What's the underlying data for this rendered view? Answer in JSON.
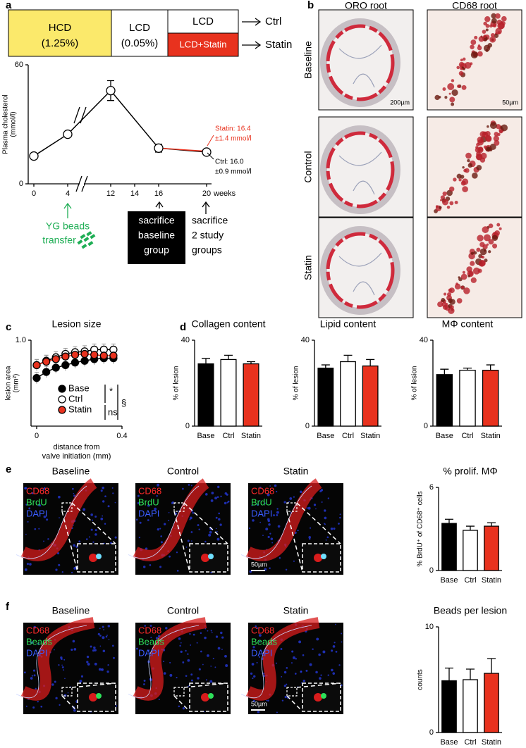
{
  "panel_labels": [
    "a",
    "b",
    "c",
    "d",
    "e",
    "f"
  ],
  "timeline": {
    "boxes": [
      {
        "lines": [
          "HCD",
          "(1.25%)"
        ]
      },
      {
        "lines": [
          "LCD",
          "(0.05%)"
        ]
      },
      {
        "lines": [
          "LCD"
        ]
      },
      {
        "lines": [
          "LCD+Statin"
        ]
      }
    ],
    "outcomes": [
      "Ctrl",
      "Statin"
    ],
    "events": [
      {
        "lines": [
          "YG beads",
          "transfer"
        ]
      },
      {
        "lines": [
          "sacrifice",
          "baseline",
          "group"
        ]
      },
      {
        "lines": [
          "sacrifice",
          "2 study",
          "groups"
        ]
      }
    ]
  },
  "histology": {
    "columns": [
      "ORO root",
      "CD68 root"
    ],
    "rows": [
      "Baseline",
      "Control",
      "Statin"
    ],
    "scales": [
      "200µm",
      "50µm"
    ]
  },
  "fluorescence": [
    {
      "titles": [
        "Baseline",
        "Control",
        "Statin"
      ],
      "channels": [
        "CD68",
        "BrdU",
        "DAPI"
      ],
      "scale": "50µm"
    },
    {
      "titles": [
        "Baseline",
        "Control",
        "Statin"
      ],
      "channels": [
        "CD68",
        "Beads",
        "DAPI"
      ],
      "scale": "50µm"
    }
  ],
  "chart_data": [
    {
      "type": "line",
      "ylabel": [
        "Plasma cholesterol",
        "(mmol/l)"
      ],
      "x_unit": "weeks",
      "xlim": [
        0,
        20
      ],
      "xticks": [
        0,
        4,
        12,
        14,
        16,
        20
      ],
      "ylim": [
        0,
        60
      ],
      "yticks": [
        0,
        60
      ],
      "series": [
        {
          "color": "#000000",
          "marker_fill": "#ffffff",
          "x": [
            0,
            4,
            12,
            16,
            20
          ],
          "values": [
            14,
            25,
            47,
            18,
            16.0
          ],
          "errors": [
            null,
            null,
            5,
            2,
            null
          ]
        },
        {
          "color": "#e8321e",
          "x": [
            16,
            20
          ],
          "values": [
            18,
            16.4
          ]
        }
      ],
      "annotations": [
        {
          "color": "#e8321e",
          "lines": [
            "Statin: 16.4",
            "±1.4 mmol/l"
          ]
        },
        {
          "color": "#000000",
          "lines": [
            "Ctrl: 16.0",
            "±0.9 mmol/l"
          ]
        }
      ]
    },
    {
      "type": "line",
      "title": "Lesion size",
      "ylabel": [
        "lesion area",
        "(mm²)"
      ],
      "xlabel": [
        "distance from",
        "valve initiation (mm)"
      ],
      "x": [
        0,
        0.045,
        0.09,
        0.135,
        0.18,
        0.225,
        0.27,
        0.315,
        0.36
      ],
      "xlim": [
        0,
        0.4
      ],
      "xticks": [
        0,
        0.4
      ],
      "ylim": [
        0,
        1
      ],
      "yticks": [
        {
          "value": 1,
          "label": "1.0"
        }
      ],
      "series": [
        {
          "name": "Base",
          "color": "#000000",
          "marker_fill": "#000000",
          "values": [
            0.56,
            0.63,
            0.68,
            0.71,
            0.74,
            0.76,
            0.78,
            0.79,
            0.79
          ]
        },
        {
          "name": "Ctrl",
          "color": "#000000",
          "marker_fill": "#ffffff",
          "values": [
            0.71,
            0.76,
            0.8,
            0.84,
            0.86,
            0.87,
            0.89,
            0.89,
            0.89
          ]
        },
        {
          "name": "Statin",
          "color": "#e8321e",
          "marker_fill": "#e8321e",
          "values": [
            0.71,
            0.75,
            0.78,
            0.81,
            0.83,
            0.84,
            0.83,
            0.82,
            0.82
          ]
        }
      ],
      "annotations": [
        "*",
        "ns",
        "§"
      ]
    },
    {
      "type": "bar",
      "title": "Collagen content",
      "ylabel": "% of lesion",
      "categories": [
        "Base",
        "Ctrl",
        "Statin"
      ],
      "values": [
        29,
        31,
        29
      ],
      "errors": [
        2.5,
        2,
        1
      ],
      "colors": [
        "#000000",
        "#ffffff",
        "#e8321e"
      ],
      "ylim": [
        0,
        40
      ],
      "yticks": [
        0,
        40
      ]
    },
    {
      "type": "bar",
      "title": "Lipid content",
      "ylabel": "% of lesion",
      "categories": [
        "Base",
        "Ctrl",
        "Statin"
      ],
      "values": [
        27,
        30,
        28
      ],
      "errors": [
        1.5,
        3,
        3
      ],
      "colors": [
        "#000000",
        "#ffffff",
        "#e8321e"
      ],
      "ylim": [
        0,
        40
      ],
      "yticks": [
        0,
        40
      ]
    },
    {
      "type": "bar",
      "title": "MΦ content",
      "ylabel": "% of lesion",
      "categories": [
        "Base",
        "Ctrl",
        "Statin"
      ],
      "values": [
        24,
        26,
        26
      ],
      "errors": [
        2.5,
        1,
        2.5
      ],
      "colors": [
        "#000000",
        "#ffffff",
        "#e8321e"
      ],
      "ylim": [
        0,
        40
      ],
      "yticks": [
        0,
        40
      ]
    },
    {
      "type": "bar",
      "title": "% prolif. MΦ",
      "ylabel": "% BrdU⁺ of CD68⁺ cells",
      "categories": [
        "Base",
        "Ctrl",
        "Statin"
      ],
      "values": [
        3.4,
        2.9,
        3.2
      ],
      "errors": [
        0.3,
        0.3,
        0.25
      ],
      "colors": [
        "#000000",
        "#ffffff",
        "#e8321e"
      ],
      "ylim": [
        0,
        6
      ],
      "yticks": [
        0,
        6
      ]
    },
    {
      "type": "bar",
      "title": "Beads per lesion",
      "ylabel": "counts",
      "categories": [
        "Base",
        "Ctrl",
        "Statin"
      ],
      "values": [
        4.9,
        5.0,
        5.6
      ],
      "errors": [
        1.2,
        1.0,
        1.4
      ],
      "colors": [
        "#000000",
        "#ffffff",
        "#e8321e"
      ],
      "ylim": [
        0,
        10
      ],
      "yticks": [
        0,
        10
      ]
    }
  ]
}
